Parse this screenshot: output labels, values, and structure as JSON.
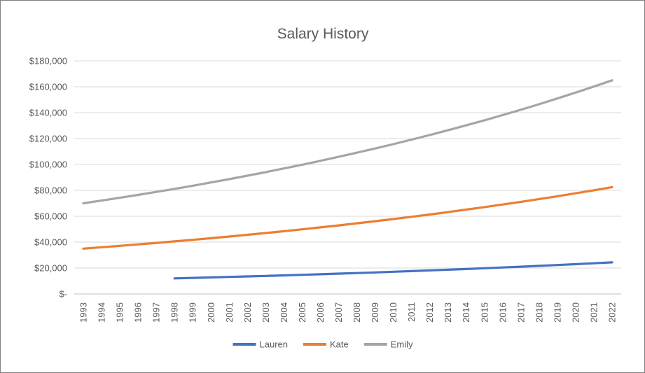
{
  "chart_data": {
    "type": "line",
    "title": "Salary History",
    "categories": [
      "1993",
      "1994",
      "1995",
      "1996",
      "1997",
      "1998",
      "1999",
      "2000",
      "2001",
      "2002",
      "2003",
      "2004",
      "2005",
      "2006",
      "2007",
      "2008",
      "2009",
      "2010",
      "2011",
      "2012",
      "2013",
      "2014",
      "2015",
      "2016",
      "2017",
      "2018",
      "2019",
      "2020",
      "2021",
      "2022"
    ],
    "series": [
      {
        "name": "Lauren",
        "color": "#4472C4",
        "values": [
          null,
          null,
          null,
          null,
          null,
          12000,
          12360,
          12731,
          13113,
          13506,
          13911,
          14329,
          14758,
          15201,
          15657,
          16127,
          16611,
          17109,
          17622,
          18151,
          18695,
          19256,
          19834,
          20429,
          21042,
          21673,
          22323,
          22993,
          23683,
          24393
        ]
      },
      {
        "name": "Kate",
        "color": "#ED7D31",
        "values": [
          35000,
          36050,
          37132,
          38245,
          39393,
          40575,
          41792,
          43046,
          44337,
          45667,
          47037,
          48448,
          49902,
          51399,
          52941,
          54529,
          56165,
          57850,
          59585,
          61373,
          63214,
          65110,
          67064,
          69076,
          71148,
          73282,
          75481,
          77745,
          80078,
          82480
        ]
      },
      {
        "name": "Emily",
        "color": "#A5A5A5",
        "values": [
          70000,
          72100,
          74263,
          76491,
          78786,
          81149,
          83584,
          86091,
          88674,
          91334,
          94074,
          96897,
          99803,
          102798,
          105881,
          109058,
          112330,
          115700,
          119171,
          122746,
          126428,
          130221,
          134128,
          138151,
          142296,
          146565,
          150962,
          155491,
          160155,
          164960
        ]
      }
    ],
    "ylim": [
      0,
      180000
    ],
    "ytick_values": [
      0,
      20000,
      40000,
      60000,
      80000,
      100000,
      120000,
      140000,
      160000,
      180000
    ],
    "ytick_labels": [
      "$-",
      "$20,000",
      "$40,000",
      "$60,000",
      "$80,000",
      "$100,000",
      "$120,000",
      "$140,000",
      "$160,000",
      "$180,000"
    ],
    "grid": true,
    "gridline_color": "#D9D9D9",
    "axis_line_color": "#BFBFBF",
    "text_color": "#595959",
    "legend_position": "bottom"
  }
}
